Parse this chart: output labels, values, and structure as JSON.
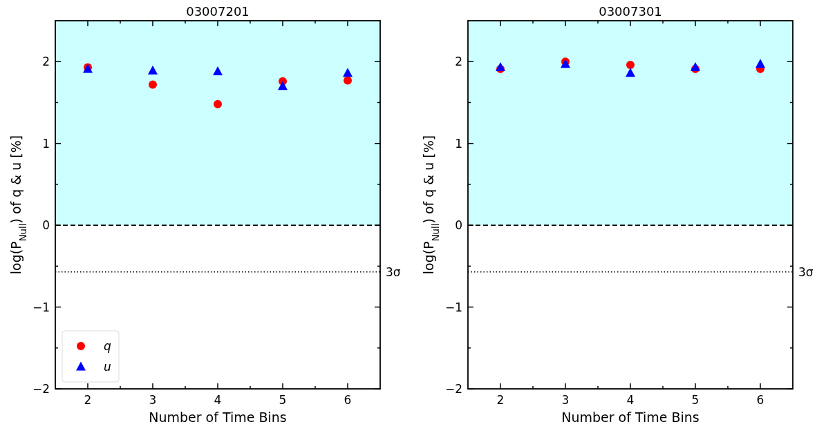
{
  "chart_data": [
    {
      "type": "scatter",
      "title": "03007201",
      "xlabel": "Number of Time Bins",
      "ylabel": "log(P$_{Null}$) of q & u [%]",
      "xlim": [
        1.5,
        6.5
      ],
      "ylim": [
        -2,
        2.5
      ],
      "xticks": [
        2,
        {
          "value": 2.5,
          "label": null
        },
        3,
        {
          "value": 3.5,
          "label": null
        },
        4,
        {
          "value": 4.5,
          "label": null
        },
        5,
        {
          "value": 5.5,
          "label": null
        },
        6
      ],
      "yticks": [
        -2,
        {
          "value": -1.5,
          "label": null
        },
        -1,
        {
          "value": -0.5,
          "label": null
        },
        0,
        {
          "value": 0.5,
          "label": null
        },
        1,
        {
          "value": 1.5,
          "label": null
        },
        2
      ],
      "x": [
        2,
        3,
        4,
        5,
        6
      ],
      "series": [
        {
          "name": "q",
          "color": "#ff0000",
          "marker": "circle",
          "values": [
            1.93,
            1.72,
            1.48,
            1.76,
            1.77
          ]
        },
        {
          "name": "u",
          "color": "#0000ff",
          "marker": "triangle",
          "values": [
            1.91,
            1.89,
            1.88,
            1.7,
            1.86
          ]
        }
      ],
      "bands": [
        {
          "axis": "y",
          "from": 0,
          "to": 2.5,
          "color": "#ccffff"
        }
      ],
      "ref_lines": [
        {
          "axis": "y",
          "value": 0,
          "line_style": "dashed",
          "color": "#000000"
        },
        {
          "axis": "y",
          "value": -0.57,
          "label": "3σ",
          "line_style": "dotted",
          "color": "#000000"
        }
      ],
      "legend": "bottom left",
      "grid": false
    },
    {
      "type": "scatter",
      "title": "03007301",
      "xlabel": "Number of Time Bins",
      "ylabel": "log(P$_{Null}$) of q & u [%]",
      "xlim": [
        1.5,
        6.5
      ],
      "ylim": [
        -2,
        2.5
      ],
      "xticks": [
        2,
        {
          "value": 2.5,
          "label": null
        },
        3,
        {
          "value": 3.5,
          "label": null
        },
        4,
        {
          "value": 4.5,
          "label": null
        },
        5,
        {
          "value": 5.5,
          "label": null
        },
        6
      ],
      "yticks": [
        -2,
        {
          "value": -1.5,
          "label": null
        },
        -1,
        {
          "value": -0.5,
          "label": null
        },
        0,
        {
          "value": 0.5,
          "label": null
        },
        1,
        {
          "value": 1.5,
          "label": null
        },
        2
      ],
      "x": [
        2,
        3,
        4,
        5,
        6
      ],
      "series": [
        {
          "color": "#ff0000",
          "marker": "circle",
          "values": [
            1.91,
            2.0,
            1.96,
            1.91,
            1.91
          ]
        },
        {
          "color": "#0000ff",
          "marker": "triangle",
          "values": [
            1.93,
            1.97,
            1.86,
            1.93,
            1.97
          ]
        }
      ],
      "bands": [
        {
          "axis": "y",
          "from": 0,
          "to": 2.5,
          "color": "#ccffff"
        }
      ],
      "ref_lines": [
        {
          "axis": "y",
          "value": 0,
          "line_style": "dashed",
          "color": "#000000"
        },
        {
          "axis": "y",
          "value": -0.57,
          "label": "3σ",
          "line_style": "dotted",
          "color": "#000000"
        }
      ],
      "legend": false,
      "grid": false
    }
  ]
}
